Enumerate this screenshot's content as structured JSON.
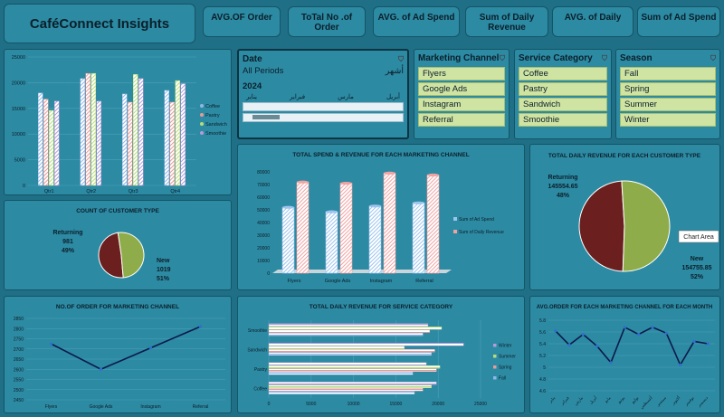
{
  "header": {
    "title": "CaféConnect Insights",
    "kpis": [
      "AVG.OF Order",
      "ToTal No .of Order",
      "AVG. of Ad Spend",
      "Sum of Daily Revenue",
      "AVG. of Daily",
      "Sum of Ad Spend"
    ]
  },
  "date_slicer": {
    "title": "Date",
    "period": "All Periods",
    "period_unit": "أشهر",
    "year": "2024",
    "months": [
      "يناير",
      "فبراير",
      "مارس",
      "أبريل"
    ]
  },
  "slicers": {
    "marketing": {
      "title": "Marketing Channel",
      "items": [
        "Flyers",
        "Google Ads",
        "Instagram",
        "Referral"
      ]
    },
    "service": {
      "title": "Service Category",
      "items": [
        "Coffee",
        "Pastry",
        "Sandwich",
        "Smoothie"
      ]
    },
    "season": {
      "title": "Season",
      "items": [
        "Fall",
        "Spring",
        "Summer",
        "Winter"
      ]
    }
  },
  "colors": {
    "coffee": "#8fb6e8",
    "pastry": "#e89a9a",
    "sandwich": "#b8dc7a",
    "smoothie": "#b79ad8",
    "returning": "#6b1f1f",
    "new": "#8fac4a",
    "spend": "#9cc4ee",
    "revenue": "#f2a2a2",
    "line": "#0b1a4a"
  },
  "chart_data": [
    {
      "type": "bar",
      "categories": [
        "Qtr1",
        "Qtr2",
        "Qtr3",
        "Qtr4"
      ],
      "ylim": [
        0,
        25000
      ],
      "yticks": [
        0,
        5000,
        10000,
        15000,
        20000,
        25000
      ],
      "series": [
        {
          "name": "Coffee",
          "values": [
            18000,
            20800,
            17800,
            18500
          ]
        },
        {
          "name": "Pastry",
          "values": [
            16800,
            21800,
            16200,
            16200
          ]
        },
        {
          "name": "Sandwich",
          "values": [
            14600,
            21800,
            21600,
            20400
          ]
        },
        {
          "name": "Smoothie",
          "values": [
            16400,
            16400,
            20800,
            19800
          ]
        }
      ],
      "legend": "right"
    },
    {
      "type": "pie",
      "title": "COUNT OF CUSTOMER TYPE",
      "slices": [
        {
          "name": "Returning",
          "value": 981,
          "percent": "49%"
        },
        {
          "name": "New",
          "value": 1019,
          "percent": "51%"
        }
      ]
    },
    {
      "type": "bar",
      "title": "TOTAL SPEND & REVENUE FOR EACH MARKETING CHANNEL",
      "categories": [
        "Flyers",
        "Google Ads",
        "Instagram",
        "Referral"
      ],
      "ylim": [
        0,
        80000
      ],
      "yticks": [
        0,
        10000,
        20000,
        30000,
        40000,
        50000,
        60000,
        70000,
        80000
      ],
      "series": [
        {
          "name": "Sum of Ad Spend",
          "values": [
            52000,
            48500,
            53000,
            55500
          ]
        },
        {
          "name": "Sum of Daily Revenue",
          "values": [
            72000,
            71000,
            79000,
            77500
          ]
        }
      ],
      "legend": "right"
    },
    {
      "type": "pie",
      "title": "TOTAL DAILY REVENUE FOR EACH CUSTOMER TYPE",
      "tooltip": "Chart Area",
      "slices": [
        {
          "name": "Returning",
          "value": "145554.65",
          "percent": "48%"
        },
        {
          "name": "New",
          "value": "154755.85",
          "percent": "52%"
        }
      ]
    },
    {
      "type": "line",
      "title": "NO.OF ORDER FOR MARKETING CHANNEL",
      "categories": [
        "Flyers",
        "Google Ads",
        "Instagram",
        "Referral"
      ],
      "values": [
        2725,
        2600,
        2705,
        2810
      ],
      "ylim": [
        2450,
        2850
      ],
      "yticks": [
        2450,
        2500,
        2550,
        2600,
        2650,
        2700,
        2750,
        2800,
        2850
      ]
    },
    {
      "type": "bar",
      "title": "TOTAL DAILY REVENUE FOR SERVICE CATEGORY",
      "orientation": "horizontal",
      "categories": [
        "Coffee",
        "Pastry",
        "Sandwich",
        "Smoothie"
      ],
      "xlim": [
        0,
        25000
      ],
      "xticks": [
        0,
        5000,
        10000,
        15000,
        20000,
        25000
      ],
      "series": [
        {
          "name": "Winter",
          "values": [
            19800,
            18600,
            23000,
            18800
          ]
        },
        {
          "name": "Summer",
          "values": [
            19200,
            20200,
            16000,
            20400
          ]
        },
        {
          "name": "Spring",
          "values": [
            18200,
            19800,
            19600,
            19000
          ]
        },
        {
          "name": "Fall",
          "values": [
            17200,
            17000,
            19200,
            18200
          ]
        }
      ],
      "legend": "right"
    },
    {
      "type": "line",
      "title": "AVG.ORDER  FOR EACH MARKETING CHANNEL FOR EACH MONTH",
      "categories": [
        "يناير",
        "فبراير",
        "مارس",
        "أبريل",
        "مايو",
        "يونيو",
        "يوليو",
        "أغسطس",
        "سبتمبر",
        "أكتوبر",
        "نوفمبر",
        "ديسمبر"
      ],
      "values": [
        5.62,
        5.38,
        5.56,
        5.36,
        5.08,
        5.68,
        5.56,
        5.68,
        5.58,
        5.04,
        5.44,
        5.4
      ],
      "ylim": [
        4.6,
        5.8
      ],
      "yticks": [
        4.6,
        4.8,
        5.0,
        5.2,
        5.4,
        5.6,
        5.8
      ]
    }
  ]
}
